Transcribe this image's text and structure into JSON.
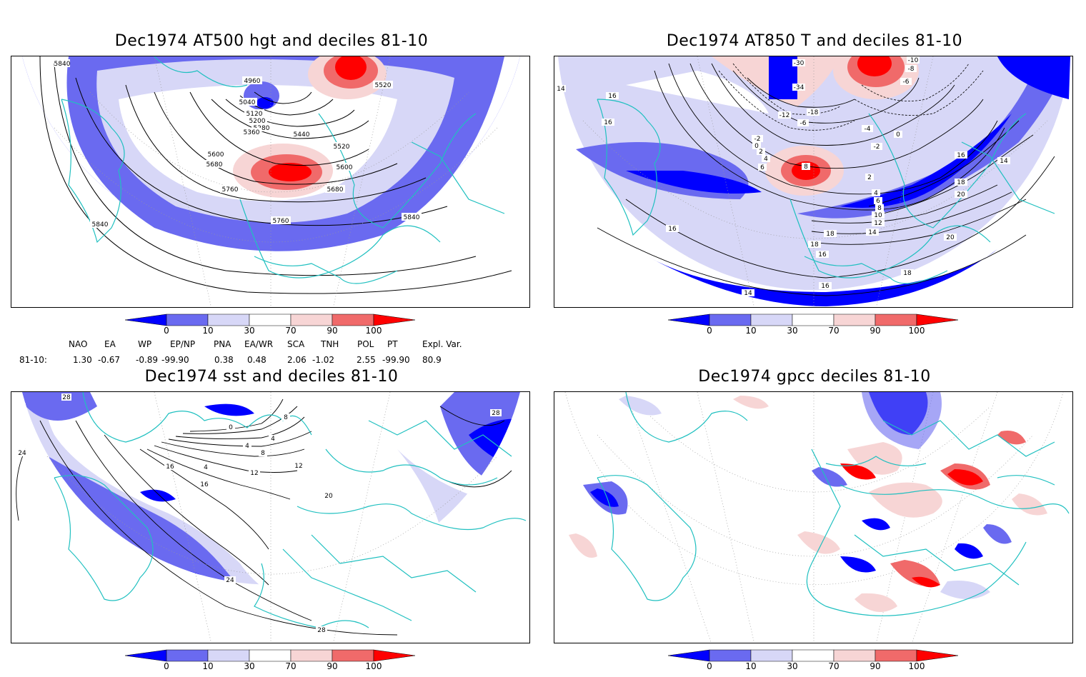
{
  "panels": {
    "p1": {
      "title": "Dec1974 AT500 hgt and deciles 81-10",
      "contour_labels": [
        "5840",
        "4960",
        "5040",
        "5120",
        "5200",
        "5280",
        "5360",
        "5440",
        "5520",
        "5600",
        "5680",
        "5760",
        "5520",
        "5600",
        "5680",
        "5760",
        "5840",
        "5840"
      ]
    },
    "p2": {
      "title": "Dec1974 AT850 T and deciles 81-10",
      "contour_labels": [
        "-10",
        "-8",
        "-6",
        "-30",
        "-34",
        "-12",
        "-18",
        "-6",
        "-2",
        "0",
        "-4",
        "0",
        "-2",
        "2",
        "4",
        "6",
        "8",
        "2",
        "4",
        "6",
        "8",
        "10",
        "12",
        "14",
        "16",
        "18",
        "20",
        "16",
        "14",
        "16",
        "16",
        "18",
        "20",
        "14",
        "16",
        "18",
        "14",
        "16",
        "18"
      ]
    },
    "p3": {
      "title": "Dec1974 sst and deciles 81-10",
      "contour_labels": [
        "28",
        "24",
        "0",
        "4",
        "8",
        "4",
        "8",
        "12",
        "16",
        "20",
        "16",
        "12",
        "4",
        "24",
        "28",
        "28"
      ]
    },
    "p4": {
      "title": "Dec1974 gpcc deciles 81-10"
    }
  },
  "colorbar": {
    "labels": [
      "0",
      "10",
      "30",
      "70",
      "90",
      "100"
    ],
    "colors": [
      "#0000ff",
      "#6a6af0",
      "#d7d7f7",
      "#ffffff",
      "#f7d5d5",
      "#f06a6a",
      "#ff0000"
    ]
  },
  "indices": {
    "headers": [
      "NAO",
      "EA",
      "WP",
      "EP/NP",
      "PNA",
      "EA/WR",
      "SCA",
      "TNH",
      "POL",
      "PT",
      "Expl. Var."
    ],
    "row_label": "81-10:",
    "values": [
      "1.30",
      "-0.67",
      "-0.89",
      "-99.90",
      "0.38",
      "0.48",
      "2.06",
      "-1.02",
      "2.55",
      "-99.90",
      "80.9"
    ]
  }
}
